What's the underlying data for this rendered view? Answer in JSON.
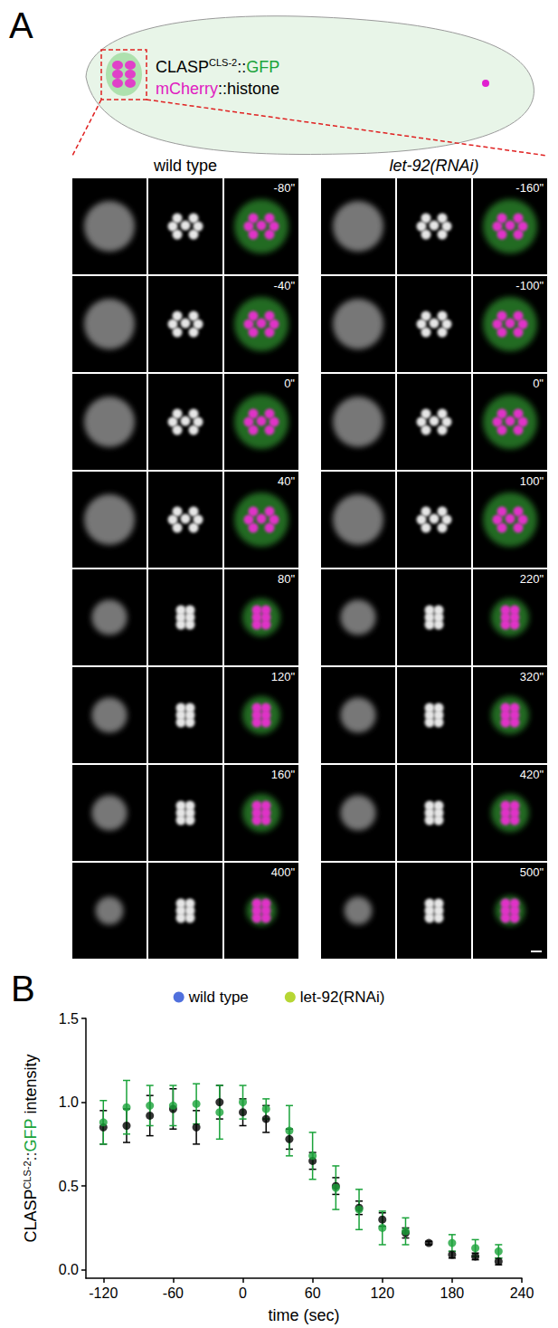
{
  "figure": {
    "panel_a_label": "A",
    "schematic_labels": {
      "clasp": [
        "CLASP",
        "CLS-2",
        "::",
        "GFP"
      ],
      "histone": [
        "mCherry",
        "::histone"
      ]
    },
    "columns": [
      {
        "title": "wild type",
        "times": [
          "-80\"",
          "-40\"",
          "0\"",
          "40\"",
          "80\"",
          "120\"",
          "160\"",
          "400\""
        ]
      },
      {
        "title": "let-92(RNAi)",
        "times": [
          "-160\"",
          "-100\"",
          "0\"",
          "100\"",
          "220\"",
          "320\"",
          "420\"",
          "500\""
        ]
      }
    ],
    "panel_b_label": "B"
  },
  "chart_data": {
    "type": "scatter",
    "x_label": "time (sec)",
    "y_label": [
      "CLASP",
      "CLS-2",
      "::",
      "GFP",
      " intensity"
    ],
    "x": [
      -120,
      -100,
      -80,
      -60,
      -40,
      -20,
      0,
      20,
      40,
      60,
      80,
      100,
      120,
      140,
      160,
      180,
      200,
      220
    ],
    "series": [
      {
        "name": "wild type",
        "color": "#000000",
        "values": [
          0.85,
          0.86,
          0.92,
          0.96,
          0.85,
          1.0,
          0.94,
          0.9,
          0.78,
          0.65,
          0.5,
          0.37,
          0.3,
          0.22,
          0.16,
          0.09,
          0.08,
          0.05
        ],
        "errors": [
          0.1,
          0.1,
          0.12,
          0.12,
          0.1,
          0.1,
          0.08,
          0.08,
          0.06,
          0.05,
          0.05,
          0.04,
          0.04,
          0.03,
          0.01,
          0.02,
          0.02,
          0.02
        ]
      },
      {
        "name": "let-92(RNAi)",
        "color": "#1aa33a",
        "values": [
          0.88,
          0.97,
          0.98,
          0.98,
          0.99,
          0.94,
          1.0,
          0.96,
          0.83,
          0.68,
          0.49,
          0.36,
          0.25,
          0.23,
          null,
          0.16,
          0.13,
          0.11
        ],
        "errors": [
          0.13,
          0.16,
          0.12,
          0.12,
          0.12,
          0.16,
          0.1,
          0.06,
          0.15,
          0.14,
          0.13,
          0.12,
          0.1,
          0.08,
          null,
          0.05,
          0.05,
          0.04
        ]
      }
    ],
    "xlim": [
      -135,
      240
    ],
    "xticks": [
      -120,
      -60,
      0,
      60,
      120,
      180,
      240
    ],
    "ylim": [
      -0.05,
      1.5
    ],
    "yticks": [
      {
        "value": 0,
        "label": "0.0"
      },
      {
        "value": 0.5,
        "label": "0.5"
      },
      {
        "value": 1,
        "label": "1.0"
      },
      {
        "value": 1.5,
        "label": "1.5"
      }
    ],
    "grid": false,
    "legend": "top",
    "marker": "circle"
  }
}
